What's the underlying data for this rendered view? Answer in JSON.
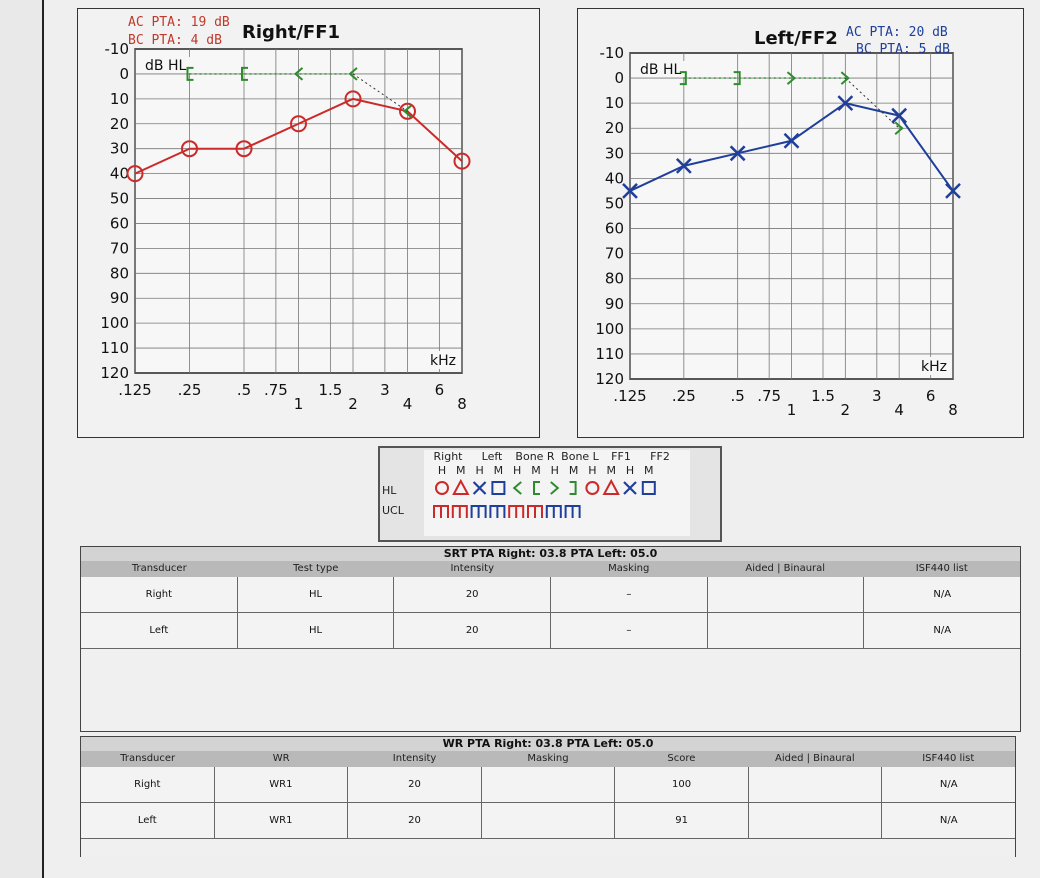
{
  "chart_data": [
    {
      "type": "line",
      "title": "Right/FF1",
      "annotations": [
        "AC PTA: 19 dB",
        "BC PTA: 4 dB"
      ],
      "unit_label": "dB HL",
      "xlabel": "kHz",
      "x_ticks": [
        ".125",
        ".25",
        ".5",
        ".75",
        "1",
        "1.5",
        "2",
        "3",
        "4",
        "6",
        "8"
      ],
      "y_ticks": [
        "-10",
        "0",
        "10",
        "20",
        "30",
        "40",
        "50",
        "60",
        "70",
        "80",
        "90",
        "100",
        "110",
        "120"
      ],
      "ylim": [
        -10,
        120
      ],
      "y_inverted": true,
      "grid": true,
      "series": [
        {
          "symbol": "circle",
          "color": "#cc2a2a",
          "x": [
            0.125,
            0.25,
            0.5,
            1,
            2,
            4,
            8
          ],
          "y": [
            40,
            30,
            30,
            20,
            10,
            15,
            35
          ]
        },
        {
          "symbol": "bracket-left",
          "color": "#2e8b2e",
          "x": [
            0.25,
            0.5,
            1,
            2,
            4
          ],
          "y": [
            0,
            0,
            0,
            0,
            15
          ]
        }
      ]
    },
    {
      "type": "line",
      "title": "Left/FF2",
      "annotations": [
        "AC PTA: 20 dB",
        "BC PTA: 5 dB"
      ],
      "unit_label": "dB HL",
      "xlabel": "kHz",
      "x_ticks": [
        ".125",
        ".25",
        ".5",
        ".75",
        "1",
        "1.5",
        "2",
        "3",
        "4",
        "6",
        "8"
      ],
      "y_ticks": [
        "-10",
        "0",
        "10",
        "20",
        "30",
        "40",
        "50",
        "60",
        "70",
        "80",
        "90",
        "100",
        "110",
        "120"
      ],
      "ylim": [
        -10,
        120
      ],
      "y_inverted": true,
      "grid": true,
      "series": [
        {
          "symbol": "x",
          "color": "#1f3f9a",
          "x": [
            0.125,
            0.25,
            0.5,
            1,
            2,
            4,
            8
          ],
          "y": [
            45,
            35,
            30,
            25,
            10,
            15,
            45
          ]
        },
        {
          "symbol": "bracket-right",
          "color": "#2e8b2e",
          "x": [
            0.25,
            0.5,
            1,
            2,
            4
          ],
          "y": [
            0,
            0,
            0,
            0,
            20
          ]
        }
      ]
    }
  ],
  "legend": {
    "groups": [
      "Right",
      "Left",
      "Bone R",
      "Bone L",
      "FF1",
      "FF2"
    ],
    "hm_labels": [
      "H",
      "M",
      "H",
      "M",
      "H",
      "M",
      "H",
      "M",
      "H",
      "M",
      "H",
      "M"
    ],
    "row_labels": [
      "HL",
      "UCL"
    ]
  },
  "srt": {
    "title": "SRT    PTA Right: 03.8  PTA Left: 05.0",
    "headers": [
      "Transducer",
      "Test type",
      "Intensity",
      "Masking",
      "Aided | Binaural",
      "ISF440 list"
    ],
    "rows": [
      [
        "Right",
        "HL",
        "20",
        "–",
        "",
        "N/A"
      ],
      [
        "Left",
        "HL",
        "20",
        "–",
        "",
        "N/A"
      ]
    ]
  },
  "wr": {
    "title": "WR    PTA Right: 03.8  PTA Left: 05.0",
    "headers": [
      "Transducer",
      "WR",
      "Intensity",
      "Masking",
      "Score",
      "Aided | Binaural",
      "ISF440 list"
    ],
    "rows": [
      [
        "Right",
        "WR1",
        "20",
        "",
        "100",
        "",
        "N/A"
      ],
      [
        "Left",
        "WR1",
        "20",
        "",
        "91",
        "",
        "N/A"
      ]
    ]
  }
}
